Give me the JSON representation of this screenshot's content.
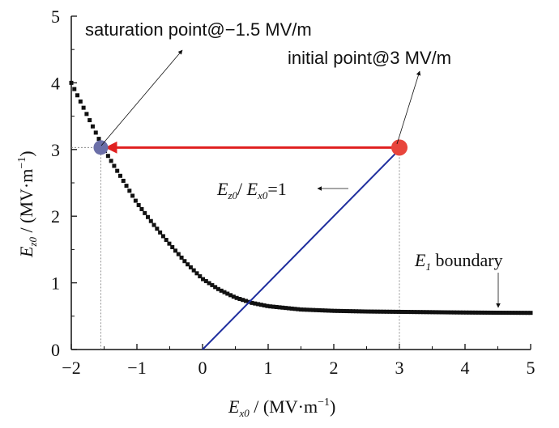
{
  "chart_data": {
    "type": "line",
    "title": "",
    "xlabel": {
      "var": "E",
      "sub": "x0",
      "unit_prefix": " / (MV·m",
      "unit_sup": "−1",
      "unit_suffix": ")"
    },
    "ylabel": {
      "var": "E",
      "sub": "z0",
      "unit_prefix": " / (MV·m",
      "unit_sup": "−1",
      "unit_suffix": ")"
    },
    "xlim": [
      -2,
      5
    ],
    "ylim": [
      0,
      5
    ],
    "x_ticks": [
      -2,
      -1,
      0,
      1,
      2,
      3,
      4,
      5
    ],
    "y_ticks": [
      0,
      1,
      2,
      3,
      4,
      5
    ],
    "x_tick_labels": [
      "−2",
      "−1",
      "0",
      "1",
      "2",
      "3",
      "4",
      "5"
    ],
    "y_tick_labels": [
      "0",
      "1",
      "2",
      "3",
      "4",
      "5"
    ],
    "grid": false,
    "series": [
      {
        "name": "E1 boundary",
        "style": "square-markers",
        "color": "#111111",
        "x": [
          -2.0,
          -1.75,
          -1.5,
          -1.25,
          -1.0,
          -0.75,
          -0.5,
          -0.25,
          0.0,
          0.25,
          0.5,
          0.75,
          1.0,
          1.5,
          2.0,
          2.5,
          3.0,
          3.5,
          4.0,
          4.5,
          5.0
        ],
        "y": [
          4.0,
          3.5,
          3.0,
          2.6,
          2.2,
          1.88,
          1.58,
          1.3,
          1.06,
          0.9,
          0.78,
          0.7,
          0.65,
          0.6,
          0.58,
          0.57,
          0.565,
          0.56,
          0.555,
          0.552,
          0.55
        ]
      },
      {
        "name": "Ez0 / Ex0 = 1",
        "style": "line",
        "color": "#1f2e9e",
        "x": [
          0,
          3
        ],
        "y": [
          0,
          3
        ]
      }
    ],
    "points": [
      {
        "name": "saturation point",
        "x": -1.55,
        "y": 3.03,
        "color": "#6b6fa8"
      },
      {
        "name": "initial point",
        "x": 3.0,
        "y": 3.03,
        "color": "#e8453c"
      }
    ],
    "arrow": {
      "from": [
        2.95,
        3.03
      ],
      "to": [
        -1.45,
        3.03
      ],
      "color": "#e02020"
    },
    "annotations": {
      "saturation": "saturation point@−1.5 MV/m",
      "initial": "initial point@3 MV/m",
      "ratio": {
        "num_var": "E",
        "num_sub": "z0",
        "mid": "/ ",
        "den_var": "E",
        "den_sub": "x0",
        "tail": "=1"
      },
      "boundary": {
        "var": "E",
        "sub": "1",
        "tail": " boundary"
      }
    }
  }
}
